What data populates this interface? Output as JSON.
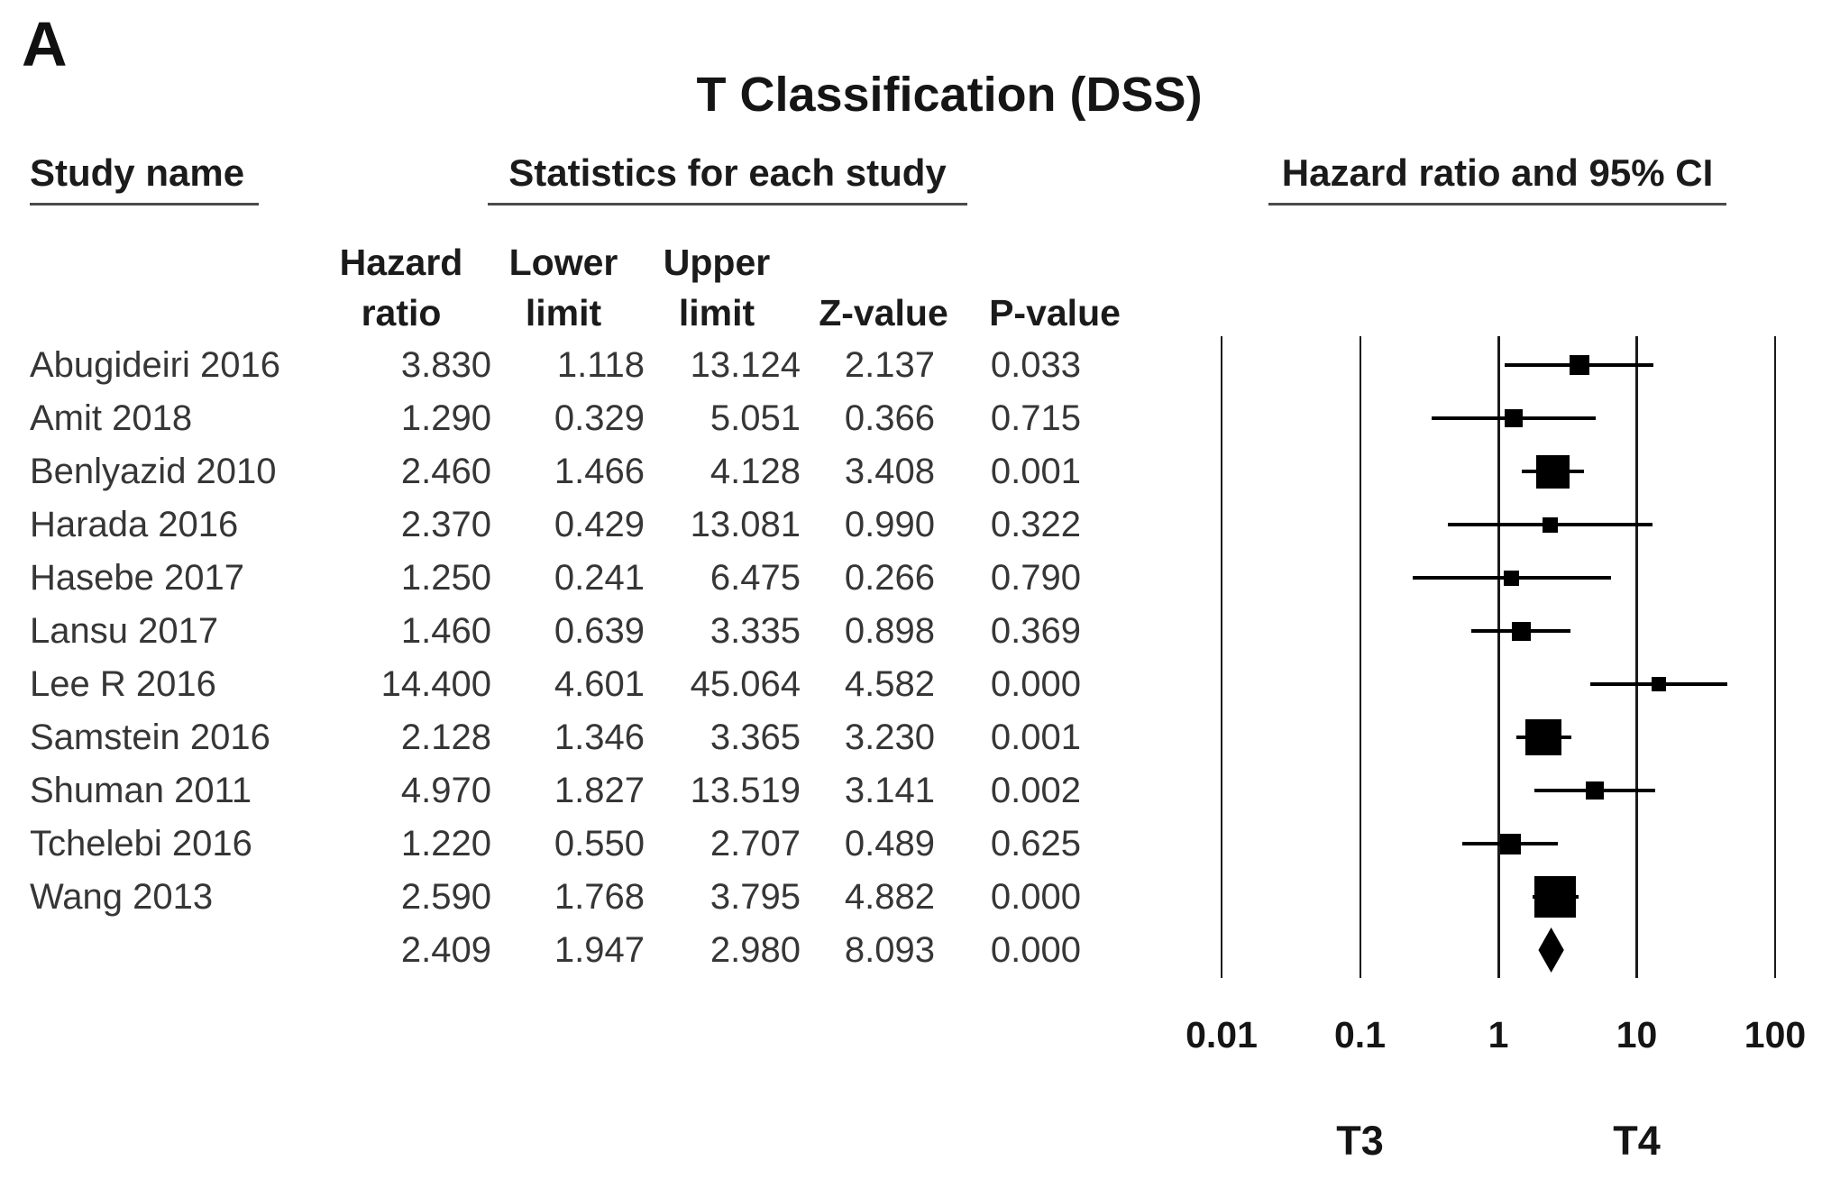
{
  "panel_label": "A",
  "title": "T Classification (DSS)",
  "section_headers": {
    "study": "Study name",
    "stats": "Statistics for each study",
    "plot": "Hazard ratio and 95% CI"
  },
  "column_headers": {
    "hazard_line1": "Hazard",
    "hazard_line2": "ratio",
    "lower_line1": "Lower",
    "lower_line2": "limit",
    "upper_line1": "Upper",
    "upper_line2": "limit",
    "z": "Z-value",
    "p": "P-value"
  },
  "chart_data": {
    "type": "forest",
    "x_scale": "log10",
    "x_range": [
      0.01,
      100
    ],
    "x_ticks": [
      {
        "value": 0.01,
        "label": "0.01"
      },
      {
        "value": 0.1,
        "label": "0.1"
      },
      {
        "value": 1,
        "label": "1"
      },
      {
        "value": 10,
        "label": "10"
      },
      {
        "value": 100,
        "label": "100"
      }
    ],
    "x_group_labels": [
      {
        "label": "T3",
        "value": 0.1
      },
      {
        "label": "T4",
        "value": 10
      }
    ],
    "studies": [
      {
        "name": "Abugideiri 2016",
        "hazard_ratio": 3.83,
        "lower_limit": 1.118,
        "upper_limit": 13.124,
        "z_value": 2.137,
        "p_value": 0.033,
        "marker_size": 22
      },
      {
        "name": "Amit 2018",
        "hazard_ratio": 1.29,
        "lower_limit": 0.329,
        "upper_limit": 5.051,
        "z_value": 0.366,
        "p_value": 0.715,
        "marker_size": 20
      },
      {
        "name": "Benlyazid 2010",
        "hazard_ratio": 2.46,
        "lower_limit": 1.466,
        "upper_limit": 4.128,
        "z_value": 3.408,
        "p_value": 0.001,
        "marker_size": 37
      },
      {
        "name": "Harada 2016",
        "hazard_ratio": 2.37,
        "lower_limit": 0.429,
        "upper_limit": 13.081,
        "z_value": 0.99,
        "p_value": 0.322,
        "marker_size": 17
      },
      {
        "name": "Hasebe 2017",
        "hazard_ratio": 1.25,
        "lower_limit": 0.241,
        "upper_limit": 6.475,
        "z_value": 0.266,
        "p_value": 0.79,
        "marker_size": 17
      },
      {
        "name": "Lansu 2017",
        "hazard_ratio": 1.46,
        "lower_limit": 0.639,
        "upper_limit": 3.335,
        "z_value": 0.898,
        "p_value": 0.369,
        "marker_size": 21
      },
      {
        "name": "Lee R 2016",
        "hazard_ratio": 14.4,
        "lower_limit": 4.601,
        "upper_limit": 45.064,
        "z_value": 4.582,
        "p_value": 0.0,
        "marker_size": 16
      },
      {
        "name": "Samstein 2016",
        "hazard_ratio": 2.128,
        "lower_limit": 1.346,
        "upper_limit": 3.365,
        "z_value": 3.23,
        "p_value": 0.001,
        "marker_size": 40
      },
      {
        "name": "Shuman 2011",
        "hazard_ratio": 4.97,
        "lower_limit": 1.827,
        "upper_limit": 13.519,
        "z_value": 3.141,
        "p_value": 0.002,
        "marker_size": 20
      },
      {
        "name": "Tchelebi 2016",
        "hazard_ratio": 1.22,
        "lower_limit": 0.55,
        "upper_limit": 2.707,
        "z_value": 0.489,
        "p_value": 0.625,
        "marker_size": 23
      },
      {
        "name": "Wang 2013",
        "hazard_ratio": 2.59,
        "lower_limit": 1.768,
        "upper_limit": 3.795,
        "z_value": 4.882,
        "p_value": 0.0,
        "marker_size": 46
      }
    ],
    "overall": {
      "name": "",
      "hazard_ratio": 2.409,
      "lower_limit": 1.947,
      "upper_limit": 2.98,
      "z_value": 8.093,
      "p_value": 0.0
    }
  },
  "colors": {
    "marker": "#000000",
    "grid_line": "#1a1a1a",
    "header_text": "#1b1b1b",
    "data_text": "#363636"
  }
}
